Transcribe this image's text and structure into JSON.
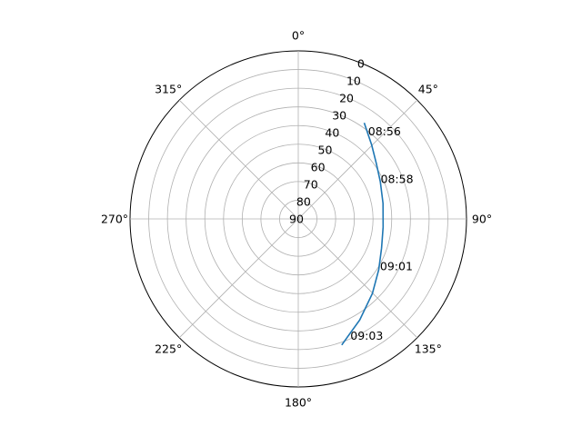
{
  "chart_data": {
    "type": "line",
    "projection": "polar",
    "theta_direction": "clockwise",
    "theta_zero_location": "top",
    "r_axis": "elevation",
    "r_ticks": [
      0,
      10,
      20,
      30,
      40,
      50,
      60,
      70,
      80,
      90
    ],
    "r_tick_labels": [
      "0",
      "10",
      "20",
      "30",
      "40",
      "50",
      "60",
      "70",
      "80",
      "90"
    ],
    "theta_ticks": [
      0,
      45,
      90,
      135,
      180,
      225,
      270,
      315
    ],
    "theta_tick_labels": [
      "0°",
      "45°",
      "90°",
      "135°",
      "180°",
      "225°",
      "270°",
      "315°"
    ],
    "grid": true,
    "line_color": "#1f77b4",
    "series": [
      {
        "values": [
          {
            "az": 34.4,
            "el": 27.6
          },
          {
            "az": 44.7,
            "el": 34.2
          },
          {
            "az": 54.5,
            "el": 38.7
          },
          {
            "az": 65.5,
            "el": 41.8
          },
          {
            "az": 79.6,
            "el": 43.9
          },
          {
            "az": 95.6,
            "el": 44.4
          },
          {
            "az": 109.3,
            "el": 42.8
          },
          {
            "az": 122.2,
            "el": 39.1
          },
          {
            "az": 135.2,
            "el": 33.7
          },
          {
            "az": 148.7,
            "el": 26.7
          },
          {
            "az": 161.0,
            "el": 18.6
          }
        ]
      }
    ],
    "annotations": [
      {
        "text": "08:56",
        "az": 38.5,
        "el": 30.0
      },
      {
        "text": "08:58",
        "az": 64.0,
        "el": 41.0
      },
      {
        "text": "09:01",
        "az": 120.0,
        "el": 39.5
      },
      {
        "text": "09:03",
        "az": 156.0,
        "el": 21.5
      }
    ]
  }
}
